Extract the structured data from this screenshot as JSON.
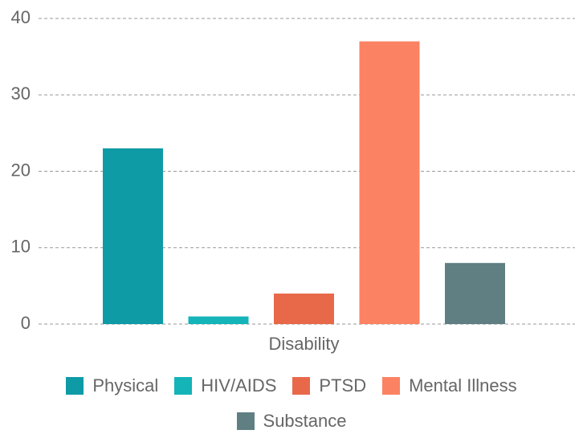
{
  "chart_data": {
    "type": "bar",
    "categories": [
      "Disability"
    ],
    "series": [
      {
        "name": "Physical",
        "color": "#0e9ba6",
        "values": [
          23
        ]
      },
      {
        "name": "HIV/AIDS",
        "color": "#14b4b8",
        "values": [
          1
        ]
      },
      {
        "name": "PTSD",
        "color": "#e8694a",
        "values": [
          4
        ]
      },
      {
        "name": "Mental Illness",
        "color": "#fb8263",
        "values": [
          37
        ]
      },
      {
        "name": "Substance",
        "color": "#607f83",
        "values": [
          8
        ]
      }
    ],
    "ylim": [
      0,
      40
    ],
    "yticks": [
      0,
      10,
      20,
      30,
      40
    ],
    "grid": true
  }
}
